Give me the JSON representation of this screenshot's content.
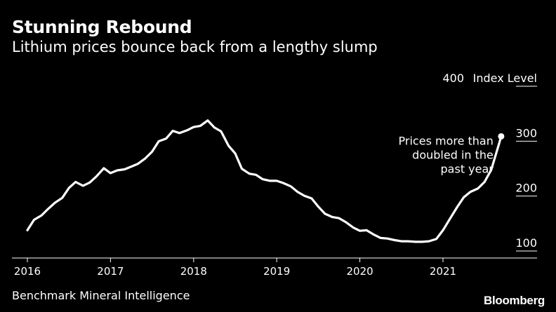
{
  "header": {
    "title": "Stunning Rebound",
    "subtitle": "Lithium prices bounce back from a lengthy slump"
  },
  "footer": {
    "source": "Benchmark Mineral Intelligence",
    "brand": "Bloomberg"
  },
  "colors": {
    "background": "#000000",
    "line": "#ffffff",
    "text": "#ffffff"
  },
  "chart_data": {
    "type": "line",
    "title": "Stunning Rebound",
    "subtitle": "Lithium prices bounce back from a lengthy slump",
    "ylabel": "Index Level",
    "ylim": [
      90,
      400
    ],
    "yticks": [
      100,
      200,
      300,
      400
    ],
    "ytick_labels": [
      "100",
      "200",
      "300",
      "400"
    ],
    "xlim": [
      2015.95,
      2021.95
    ],
    "xticks": [
      2016,
      2017,
      2018,
      2019,
      2020,
      2021
    ],
    "xtick_labels": [
      "2016",
      "2017",
      "2018",
      "2019",
      "2020",
      "2021"
    ],
    "grid": false,
    "annotation": {
      "lines": [
        "Prices more than",
        "doubled in the",
        "past year"
      ],
      "x": 2021.7,
      "y": 296
    },
    "series": [
      {
        "x": [
          2016.0,
          2016.08,
          2016.17,
          2016.25,
          2016.33,
          2016.42,
          2016.5,
          2016.58,
          2016.67,
          2016.75,
          2016.83,
          2016.92,
          2017.0,
          2017.08,
          2017.17,
          2017.25,
          2017.33,
          2017.42,
          2017.5,
          2017.58,
          2017.67,
          2017.75,
          2017.83,
          2017.92,
          2018.0,
          2018.08,
          2018.17,
          2018.25,
          2018.33,
          2018.42,
          2018.5,
          2018.58,
          2018.67,
          2018.75,
          2018.83,
          2018.92,
          2019.0,
          2019.08,
          2019.17,
          2019.25,
          2019.33,
          2019.42,
          2019.5,
          2019.58,
          2019.67,
          2019.75,
          2019.83,
          2019.92,
          2020.0,
          2020.08,
          2020.17,
          2020.25,
          2020.33,
          2020.42,
          2020.5,
          2020.58,
          2020.67,
          2020.75,
          2020.83,
          2020.92,
          2021.0,
          2021.08,
          2021.17,
          2021.25,
          2021.33,
          2021.42,
          2021.5,
          2021.58,
          2021.67,
          2021.7
        ],
        "y": [
          125,
          144,
          152,
          164,
          175,
          184,
          202,
          213,
          206,
          212,
          223,
          238,
          229,
          234,
          236,
          241,
          246,
          256,
          268,
          287,
          292,
          306,
          302,
          307,
          313,
          315,
          325,
          312,
          305,
          279,
          265,
          237,
          228,
          226,
          218,
          215,
          215,
          211,
          205,
          195,
          188,
          183,
          168,
          155,
          149,
          147,
          140,
          130,
          124,
          125,
          117,
          111,
          110,
          107,
          105,
          105,
          104,
          104,
          105,
          109,
          125,
          145,
          167,
          185,
          195,
          201,
          213,
          235,
          280,
          296
        ]
      }
    ]
  }
}
